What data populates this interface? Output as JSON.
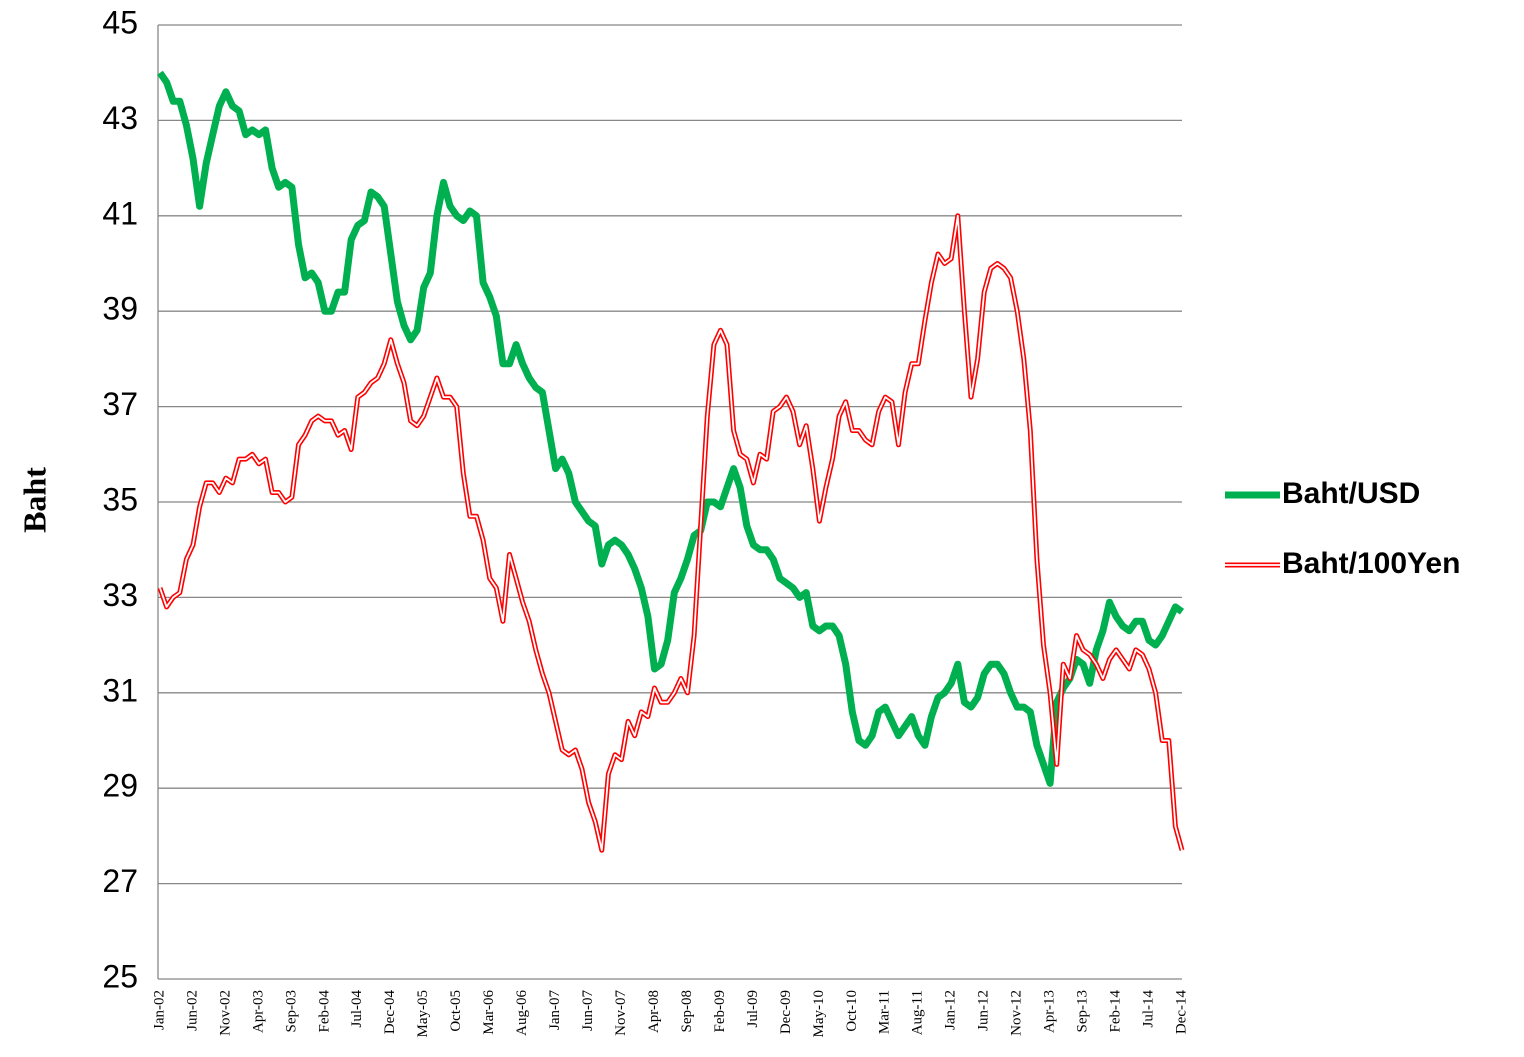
{
  "chart_data": {
    "type": "line",
    "y_label": "Baht",
    "categories": [
      "Jan-02",
      null,
      null,
      null,
      null,
      "Jun-02",
      null,
      null,
      null,
      null,
      "Nov-02",
      null,
      null,
      null,
      null,
      "Apr-03",
      null,
      null,
      null,
      null,
      "Sep-03",
      null,
      null,
      null,
      null,
      "Feb-04",
      null,
      null,
      null,
      null,
      "Jul-04",
      null,
      null,
      null,
      null,
      "Dec-04",
      null,
      null,
      null,
      null,
      "May-05",
      null,
      null,
      null,
      null,
      "Oct-05",
      null,
      null,
      null,
      null,
      "Mar-06",
      null,
      null,
      null,
      null,
      "Aug-06",
      null,
      null,
      null,
      null,
      "Jan-07",
      null,
      null,
      null,
      null,
      "Jun-07",
      null,
      null,
      null,
      null,
      "Nov-07",
      null,
      null,
      null,
      null,
      "Apr-08",
      null,
      null,
      null,
      null,
      "Sep-08",
      null,
      null,
      null,
      null,
      "Feb-09",
      null,
      null,
      null,
      null,
      "Jul-09",
      null,
      null,
      null,
      null,
      "Dec-09",
      null,
      null,
      null,
      null,
      "May-10",
      null,
      null,
      null,
      null,
      "Oct-10",
      null,
      null,
      null,
      null,
      "Mar-11",
      null,
      null,
      null,
      null,
      "Aug-11",
      null,
      null,
      null,
      null,
      "Jan-12",
      null,
      null,
      null,
      null,
      "Jun-12",
      null,
      null,
      null,
      null,
      "Nov-12",
      null,
      null,
      null,
      null,
      "Apr-13",
      null,
      null,
      null,
      null,
      "Sep-13",
      null,
      null,
      null,
      null,
      "Feb-14",
      null,
      null,
      null,
      null,
      "Jul-14",
      null,
      null,
      null,
      null,
      "Dec-14"
    ],
    "series": [
      {
        "name": "Baht/USD",
        "color": "#00b050",
        "style": "solid",
        "values": [
          44.0,
          43.8,
          43.4,
          43.4,
          42.9,
          42.2,
          41.2,
          42.1,
          42.7,
          43.3,
          43.6,
          43.3,
          43.2,
          42.7,
          42.8,
          42.7,
          42.8,
          42.0,
          41.6,
          41.7,
          41.6,
          40.4,
          39.7,
          39.8,
          39.6,
          39.0,
          39.0,
          39.4,
          39.4,
          40.5,
          40.8,
          40.9,
          41.5,
          41.4,
          41.2,
          40.2,
          39.2,
          38.7,
          38.4,
          38.6,
          39.5,
          39.8,
          41.0,
          41.7,
          41.2,
          41.0,
          40.9,
          41.1,
          41.0,
          39.6,
          39.3,
          38.9,
          37.9,
          37.9,
          38.3,
          37.9,
          37.6,
          37.4,
          37.3,
          36.5,
          35.7,
          35.9,
          35.6,
          35.0,
          34.8,
          34.6,
          34.5,
          33.7,
          34.1,
          34.2,
          34.1,
          33.9,
          33.6,
          33.2,
          32.6,
          31.5,
          31.6,
          32.1,
          33.1,
          33.4,
          33.8,
          34.3,
          34.4,
          35.0,
          35.0,
          34.9,
          35.3,
          35.7,
          35.3,
          34.5,
          34.1,
          34.0,
          34.0,
          33.8,
          33.4,
          33.3,
          33.2,
          33.0,
          33.1,
          32.4,
          32.3,
          32.4,
          32.4,
          32.2,
          31.6,
          30.6,
          30.0,
          29.9,
          30.1,
          30.6,
          30.7,
          30.4,
          30.1,
          30.3,
          30.5,
          30.1,
          29.9,
          30.5,
          30.9,
          31.0,
          31.2,
          31.6,
          30.8,
          30.7,
          30.9,
          31.4,
          31.6,
          31.6,
          31.4,
          31.0,
          30.7,
          30.7,
          30.6,
          29.9,
          29.5,
          29.1,
          30.8,
          31.1,
          31.3,
          31.7,
          31.6,
          31.2,
          31.9,
          32.3,
          32.9,
          32.6,
          32.4,
          32.3,
          32.5,
          32.5,
          32.1,
          32.0,
          32.2,
          32.5,
          32.8,
          32.7
        ]
      },
      {
        "name": "Baht/100Yen",
        "color": "#ff0000",
        "style": "double",
        "values": [
          33.2,
          32.8,
          33.0,
          33.1,
          33.8,
          34.1,
          34.9,
          35.4,
          35.4,
          35.2,
          35.5,
          35.4,
          35.9,
          35.9,
          36.0,
          35.8,
          35.9,
          35.2,
          35.2,
          35.0,
          35.1,
          36.2,
          36.4,
          36.7,
          36.8,
          36.7,
          36.7,
          36.4,
          36.5,
          36.1,
          37.2,
          37.3,
          37.5,
          37.6,
          37.9,
          38.4,
          37.9,
          37.5,
          36.7,
          36.6,
          36.8,
          37.2,
          37.6,
          37.2,
          37.2,
          37.0,
          35.6,
          34.7,
          34.7,
          34.2,
          33.4,
          33.2,
          32.5,
          33.9,
          33.4,
          32.9,
          32.5,
          31.9,
          31.4,
          31.0,
          30.4,
          29.8,
          29.7,
          29.8,
          29.4,
          28.7,
          28.3,
          27.7,
          29.3,
          29.7,
          29.6,
          30.4,
          30.1,
          30.6,
          30.5,
          31.1,
          30.8,
          30.8,
          31.0,
          31.3,
          31.0,
          32.2,
          34.5,
          36.8,
          38.3,
          38.6,
          38.3,
          36.5,
          36.0,
          35.9,
          35.4,
          36.0,
          35.9,
          36.9,
          37.0,
          37.2,
          36.9,
          36.2,
          36.6,
          35.7,
          34.6,
          35.3,
          35.9,
          36.8,
          37.1,
          36.5,
          36.5,
          36.3,
          36.2,
          36.9,
          37.2,
          37.1,
          36.2,
          37.3,
          37.9,
          37.9,
          38.8,
          39.6,
          40.2,
          40.0,
          40.1,
          41.0,
          39.0,
          37.2,
          38.0,
          39.4,
          39.9,
          40.0,
          39.9,
          39.7,
          39.0,
          38.0,
          36.5,
          33.8,
          32.0,
          31.0,
          29.5,
          31.6,
          31.3,
          32.2,
          31.9,
          31.8,
          31.6,
          31.3,
          31.7,
          31.9,
          31.7,
          31.5,
          31.9,
          31.8,
          31.5,
          31.0,
          30.0,
          30.0,
          28.2,
          27.7
        ]
      }
    ],
    "ylim": [
      25,
      45
    ],
    "yticks": [
      25,
      27,
      29,
      31,
      33,
      35,
      37,
      39,
      41,
      43,
      45
    ],
    "grid": true,
    "legend": "right"
  }
}
